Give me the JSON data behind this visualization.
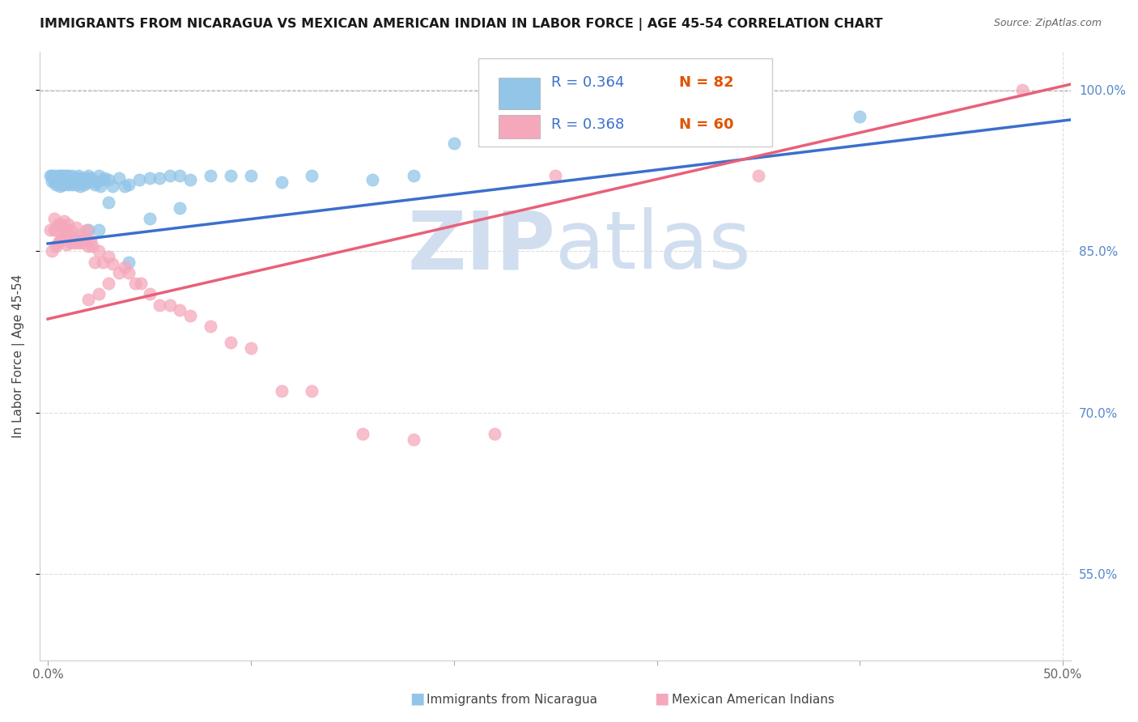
{
  "title": "IMMIGRANTS FROM NICARAGUA VS MEXICAN AMERICAN INDIAN IN LABOR FORCE | AGE 45-54 CORRELATION CHART",
  "source": "Source: ZipAtlas.com",
  "ylabel": "In Labor Force | Age 45-54",
  "xlim": [
    -0.004,
    0.504
  ],
  "ylim": [
    0.47,
    1.035
  ],
  "blue_color": "#92C5E8",
  "pink_color": "#F5A8BC",
  "blue_line_color": "#3B6FCC",
  "pink_line_color": "#E8607A",
  "legend_R_blue": "0.364",
  "legend_N_blue": "82",
  "legend_R_pink": "0.368",
  "legend_N_pink": "60",
  "watermark_zip": "ZIP",
  "watermark_atlas": "atlas",
  "watermark_color": "#D0DEF0",
  "blue_scatter_x": [
    0.001,
    0.002,
    0.002,
    0.003,
    0.003,
    0.004,
    0.004,
    0.005,
    0.005,
    0.005,
    0.006,
    0.006,
    0.006,
    0.007,
    0.007,
    0.007,
    0.008,
    0.008,
    0.008,
    0.009,
    0.009,
    0.009,
    0.01,
    0.01,
    0.01,
    0.011,
    0.011,
    0.012,
    0.012,
    0.012,
    0.013,
    0.013,
    0.014,
    0.014,
    0.015,
    0.015,
    0.016,
    0.016,
    0.017,
    0.017,
    0.018,
    0.018,
    0.019,
    0.02,
    0.02,
    0.021,
    0.022,
    0.023,
    0.024,
    0.025,
    0.026,
    0.027,
    0.028,
    0.03,
    0.032,
    0.035,
    0.038,
    0.04,
    0.045,
    0.05,
    0.055,
    0.06,
    0.065,
    0.07,
    0.08,
    0.09,
    0.1,
    0.115,
    0.13,
    0.16,
    0.18,
    0.2,
    0.22,
    0.35,
    0.4,
    0.05,
    0.065,
    0.02,
    0.025,
    0.03,
    0.015,
    0.04
  ],
  "blue_scatter_y": [
    0.92,
    0.92,
    0.915,
    0.92,
    0.915,
    0.918,
    0.912,
    0.918,
    0.914,
    0.92,
    0.916,
    0.91,
    0.92,
    0.912,
    0.918,
    0.92,
    0.916,
    0.912,
    0.92,
    0.914,
    0.918,
    0.92,
    0.916,
    0.912,
    0.92,
    0.914,
    0.918,
    0.916,
    0.912,
    0.92,
    0.914,
    0.918,
    0.916,
    0.912,
    0.918,
    0.92,
    0.91,
    0.916,
    0.914,
    0.918,
    0.912,
    0.916,
    0.918,
    0.914,
    0.92,
    0.918,
    0.916,
    0.912,
    0.914,
    0.92,
    0.91,
    0.916,
    0.918,
    0.916,
    0.91,
    0.918,
    0.91,
    0.912,
    0.916,
    0.918,
    0.918,
    0.92,
    0.92,
    0.916,
    0.92,
    0.92,
    0.92,
    0.914,
    0.92,
    0.916,
    0.92,
    0.95,
    0.96,
    0.99,
    0.975,
    0.88,
    0.89,
    0.87,
    0.87,
    0.895,
    0.86,
    0.84
  ],
  "pink_scatter_x": [
    0.001,
    0.002,
    0.003,
    0.003,
    0.004,
    0.004,
    0.005,
    0.005,
    0.006,
    0.006,
    0.007,
    0.007,
    0.008,
    0.008,
    0.009,
    0.009,
    0.01,
    0.01,
    0.011,
    0.011,
    0.012,
    0.013,
    0.014,
    0.015,
    0.016,
    0.017,
    0.018,
    0.019,
    0.02,
    0.021,
    0.022,
    0.023,
    0.025,
    0.027,
    0.03,
    0.032,
    0.035,
    0.038,
    0.04,
    0.043,
    0.046,
    0.05,
    0.055,
    0.06,
    0.065,
    0.07,
    0.08,
    0.09,
    0.1,
    0.115,
    0.13,
    0.155,
    0.18,
    0.22,
    0.48,
    0.35,
    0.25,
    0.02,
    0.025,
    0.03
  ],
  "pink_scatter_y": [
    0.87,
    0.85,
    0.88,
    0.87,
    0.855,
    0.87,
    0.858,
    0.875,
    0.86,
    0.875,
    0.862,
    0.872,
    0.865,
    0.878,
    0.856,
    0.868,
    0.862,
    0.875,
    0.858,
    0.87,
    0.862,
    0.858,
    0.872,
    0.858,
    0.865,
    0.858,
    0.862,
    0.87,
    0.855,
    0.86,
    0.855,
    0.84,
    0.85,
    0.84,
    0.845,
    0.838,
    0.83,
    0.835,
    0.83,
    0.82,
    0.82,
    0.81,
    0.8,
    0.8,
    0.795,
    0.79,
    0.78,
    0.765,
    0.76,
    0.72,
    0.72,
    0.68,
    0.675,
    0.68,
    1.0,
    0.92,
    0.92,
    0.805,
    0.81,
    0.82
  ],
  "blue_trend_x": [
    0.0,
    0.504
  ],
  "blue_trend_y": [
    0.857,
    0.972
  ],
  "pink_trend_x": [
    0.0,
    0.504
  ],
  "pink_trend_y": [
    0.787,
    1.005
  ],
  "dashed_line_y": 0.999,
  "grid_color": "#DDDDDD",
  "grid_linestyle": "--",
  "ytick_vals": [
    0.55,
    0.7,
    0.85,
    1.0
  ],
  "ytick_labels": [
    "55.0%",
    "70.0%",
    "85.0%",
    "100.0%"
  ],
  "xtick_vals": [
    0.0,
    0.1,
    0.2,
    0.3,
    0.4,
    0.5
  ],
  "xtick_labels_show": [
    "0.0%",
    "",
    "",
    "",
    "",
    "50.0%"
  ],
  "tick_color_right": "#5588CC",
  "title_fontsize": 11.5,
  "source_fontsize": 9,
  "axis_label_color": "#444444",
  "bottom_legend_blue": "Immigrants from Nicaragua",
  "bottom_legend_pink": "Mexican American Indians"
}
